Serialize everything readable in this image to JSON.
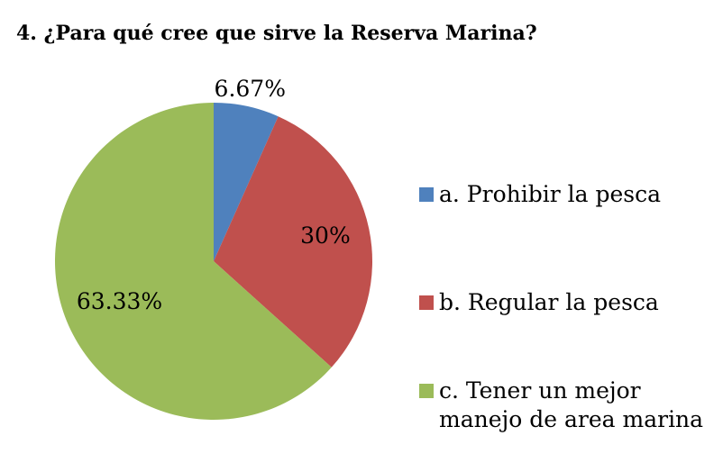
{
  "chart_data": {
    "type": "pie",
    "title": "4. ¿Para qué cree que sirve la Reserva Marina?",
    "categories": [
      "a. Prohibir la pesca",
      "b. Regular la pesca",
      "c. Tener un mejor manejo de area marina"
    ],
    "values": [
      6.67,
      30,
      63.33
    ],
    "value_labels": [
      "6.67%",
      "30%",
      "63.33%"
    ],
    "colors": [
      "#4f81bd",
      "#c0504d",
      "#9bbb59"
    ],
    "legend": "right"
  }
}
